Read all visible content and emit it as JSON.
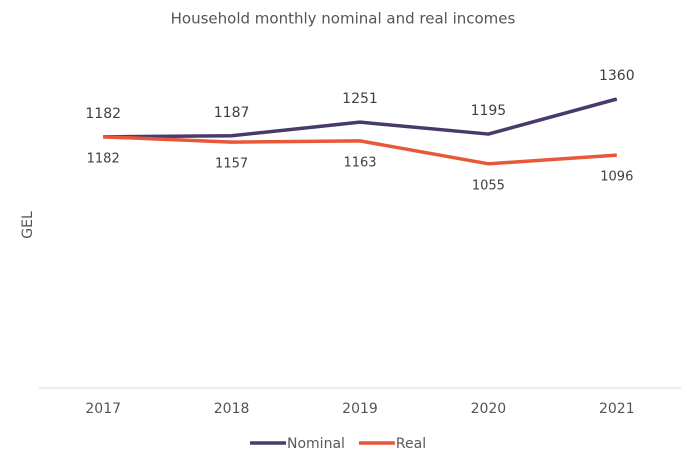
{
  "chart_data": {
    "type": "line",
    "title": "Household monthly nominal and real incomes",
    "y_label": "GEL",
    "categories": [
      "2017",
      "2018",
      "2019",
      "2020",
      "2021"
    ],
    "series": [
      {
        "name": "Nominal",
        "color": "#4a3a6c",
        "values": [
          1182,
          1187,
          1251,
          1195,
          1360
        ]
      },
      {
        "name": "Real",
        "color": "#e9573a",
        "values": [
          1182,
          1157,
          1163,
          1055,
          1096
        ]
      }
    ],
    "ylim": [
      0,
      1600
    ],
    "legend": "bottom"
  }
}
